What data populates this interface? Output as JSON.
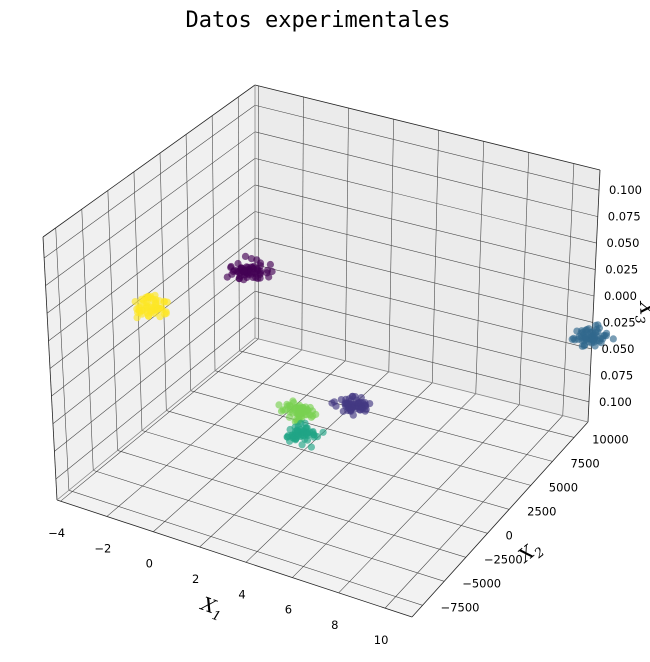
{
  "chart_data": {
    "type": "scatter",
    "title": "Datos experimentales",
    "xlabel": "X",
    "ylabel": "X",
    "zlabel": "X",
    "xlabel_sub": "1",
    "ylabel_sub": "2",
    "zlabel_sub": "3",
    "xlim": [
      -4,
      10.5
    ],
    "ylim": [
      -8800,
      10500
    ],
    "zlim": [
      -0.11,
      0.12
    ],
    "x_ticks": [
      "−4",
      "−2",
      "0",
      "2",
      "4",
      "6",
      "8",
      "10"
    ],
    "y_ticks": [
      "−7500",
      "−5000",
      "−2500",
      "0",
      "2500",
      "5000",
      "7500",
      "10000"
    ],
    "z_ticks": [
      "0.100",
      "0.075",
      "0.050",
      "0.025",
      "0.000",
      "0.025",
      "0.050",
      "0.075",
      "0.100"
    ],
    "grid": true,
    "projection": "3d",
    "series": [
      {
        "color": "#440154",
        "x": -2.3,
        "y": 5800,
        "z": 0.0
      },
      {
        "color": "#fde725",
        "x": -3.8,
        "y": 0,
        "z": 0.0
      },
      {
        "color": "#31688e",
        "x": 10.0,
        "y": 9800,
        "z": 0.0
      },
      {
        "color": "#443983",
        "x": 5.5,
        "y": -2700,
        "z": 0.0
      },
      {
        "color": "#7ad151",
        "x": 4.2,
        "y": -4800,
        "z": 0.0
      },
      {
        "color": "#21a585",
        "x": 5.1,
        "y": -6600,
        "z": 0.0
      }
    ]
  }
}
